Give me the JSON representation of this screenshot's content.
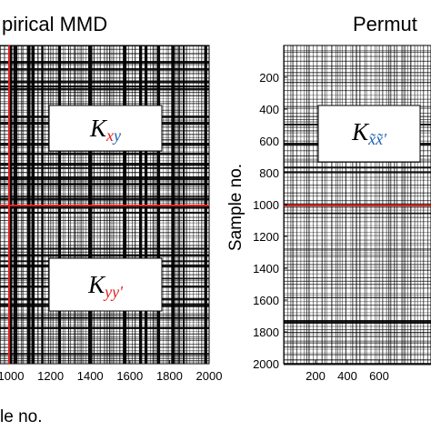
{
  "chart_data": [
    {
      "type": "heatmap",
      "title": "Empirical MMD",
      "title_visible": "pirical MMD",
      "xlabel": "Sample no.",
      "xlabel_visible": "le no.",
      "xlim": [
        0,
        2000
      ],
      "ylim": [
        0,
        2000
      ],
      "x_tick_labels": [
        "1000",
        "1200",
        "1400",
        "1600",
        "1800",
        "2000"
      ],
      "boundary": 1000,
      "boundary_color": "#e02020",
      "annotations": [
        {
          "base": "K",
          "sub": [
            {
              "t": "x",
              "color": "#e02020"
            },
            {
              "t": "y",
              "color": "#1f5fb0"
            }
          ]
        },
        {
          "base": "K",
          "sub": [
            {
              "t": "yy'",
              "color": "#e02020"
            }
          ]
        }
      ]
    },
    {
      "type": "heatmap",
      "title": "Permutation",
      "title_visible": "Permut",
      "ylabel": "Sample no.",
      "xlim": [
        0,
        2000
      ],
      "ylim": [
        0,
        2000
      ],
      "y_tick_labels": [
        "200",
        "400",
        "600",
        "800",
        "1000",
        "1200",
        "1400",
        "1600",
        "1800",
        "2000"
      ],
      "x_tick_labels": [
        "200",
        "400",
        "600"
      ],
      "boundary": 1000,
      "boundary_color": "#e02020",
      "annotations": [
        {
          "base": "K",
          "sub": [
            {
              "t": "x̃x̃'",
              "color": "#1f5fb0"
            }
          ]
        }
      ]
    }
  ]
}
